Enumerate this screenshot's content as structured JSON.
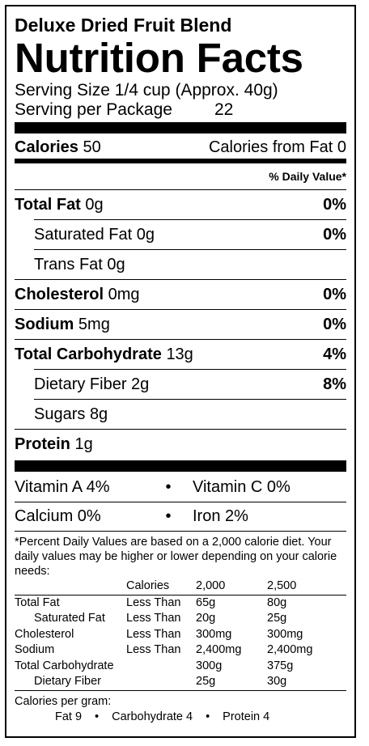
{
  "product_name": "Deluxe Dried Fruit Blend",
  "title": "Nutrition Facts",
  "serving_size": "Serving Size 1/4 cup (Approx. 40g)",
  "servings_label": "Serving per Package",
  "servings_value": "22",
  "calories_label": "Calories",
  "calories_value": "50",
  "calories_from_fat": "Calories from Fat 0",
  "daily_value_header": "% Daily Value*",
  "nutrients": [
    {
      "name": "Total Fat",
      "amount": "0g",
      "dv": "0%"
    },
    {
      "name": "Saturated Fat",
      "amount": "0g",
      "dv": "0%"
    },
    {
      "name": "Trans Fat",
      "amount": "0g",
      "dv": ""
    },
    {
      "name": "Cholesterol",
      "amount": "0mg",
      "dv": "0%"
    },
    {
      "name": "Sodium",
      "amount": "5mg",
      "dv": "0%"
    },
    {
      "name": "Total Carbohydrate",
      "amount": "13g",
      "dv": "4%"
    },
    {
      "name": "Dietary Fiber",
      "amount": "2g",
      "dv": "8%"
    },
    {
      "name": "Sugars",
      "amount": "8g",
      "dv": ""
    },
    {
      "name": "Protein",
      "amount": "1g",
      "dv": ""
    }
  ],
  "vitamins": [
    {
      "left": "Vitamin A 4%",
      "right": "Vitamin C 0%"
    },
    {
      "left": "Calcium 0%",
      "right": "Iron 2%"
    }
  ],
  "bullet": "•",
  "footnote": "*Percent Daily Values are based on a 2,000 calorie diet. Your daily values may be higher or lower depending on your calorie needs:",
  "dv_table": {
    "header": [
      "",
      "Calories",
      "2,000",
      "2,500"
    ],
    "rows": [
      [
        "Total Fat",
        "Less Than",
        "65g",
        "80g"
      ],
      [
        "Saturated Fat",
        "Less Than",
        "20g",
        "25g"
      ],
      [
        "Cholesterol",
        "Less Than",
        "300mg",
        "300mg"
      ],
      [
        "Sodium",
        "Less Than",
        "2,400mg",
        "2,400mg"
      ],
      [
        "Total Carbohydrate",
        "",
        "300g",
        "375g"
      ],
      [
        "Dietary Fiber",
        "",
        "25g",
        "30g"
      ]
    ]
  },
  "calories_per_gram": {
    "label": "Calories per gram:",
    "fat": "Fat 9",
    "carbohydrate": "Carbohydrate 4",
    "protein": "Protein 4"
  }
}
